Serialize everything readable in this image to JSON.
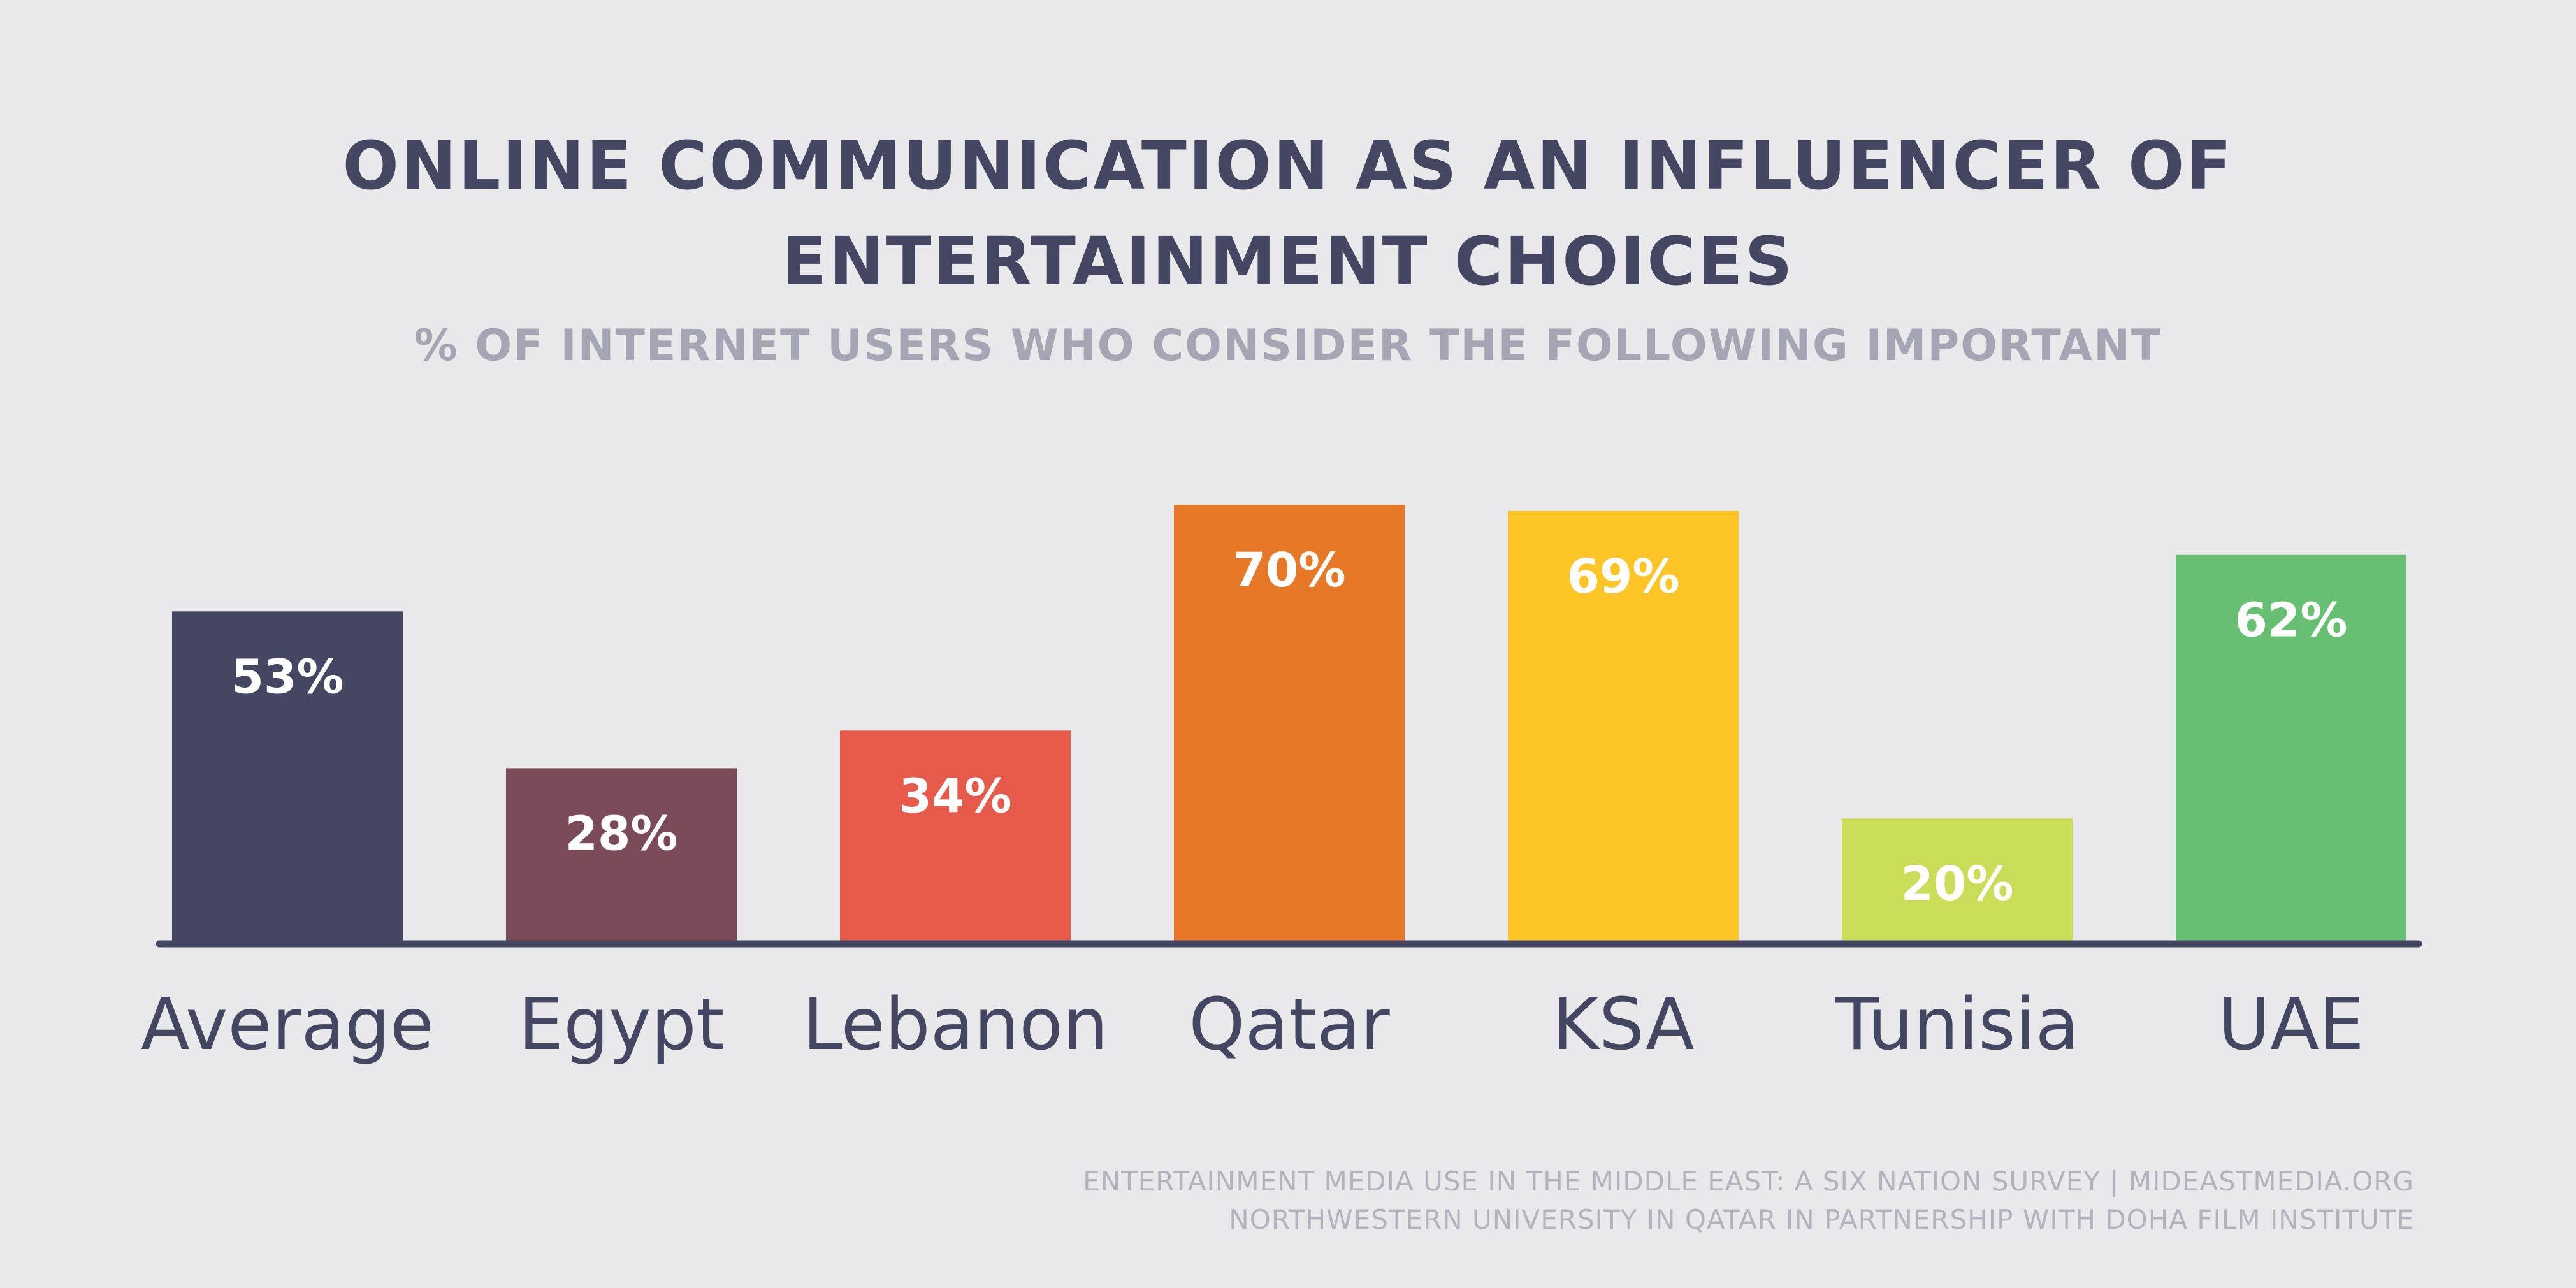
{
  "header": {
    "title_line1": "ONLINE COMMUNICATION AS AN INFLUENCER OF",
    "title_line2": "ENTERTAINMENT CHOICES",
    "subtitle": "% OF INTERNET USERS WHO CONSIDER THE FOLLOWING IMPORTANT"
  },
  "footer": {
    "source_line1": "ENTERTAINMENT MEDIA USE IN THE MIDDLE EAST: A SIX NATION SURVEY | MIDEASTMEDIA.ORG",
    "source_line2": "NORTHWESTERN UNIVERSITY IN QATAR IN PARTNERSHIP WITH DOHA FILM INSTITUTE"
  },
  "colors": {
    "background": "#e9e9eb",
    "text_dark": "#454662",
    "text_muted": "#a5a5b3",
    "baseline": "#454662"
  },
  "chart_data": {
    "type": "bar",
    "title": "ONLINE COMMUNICATION AS AN INFLUENCER OF ENTERTAINMENT CHOICES",
    "subtitle": "% OF INTERNET USERS WHO CONSIDER THE FOLLOWING IMPORTANT",
    "categories": [
      "Average",
      "Egypt",
      "Lebanon",
      "Qatar",
      "KSA",
      "Tunisia",
      "UAE"
    ],
    "values": [
      53,
      28,
      34,
      70,
      69,
      20,
      62
    ],
    "value_labels": [
      "53%",
      "28%",
      "34%",
      "70%",
      "69%",
      "20%",
      "62%"
    ],
    "bar_colors": [
      "#454662",
      "#7b4a59",
      "#e65a4c",
      "#e67827",
      "#fdc526",
      "#cbdc58",
      "#67bf72"
    ],
    "unit": "%",
    "ylim": [
      0,
      70
    ],
    "grid": false,
    "legend": "none"
  }
}
